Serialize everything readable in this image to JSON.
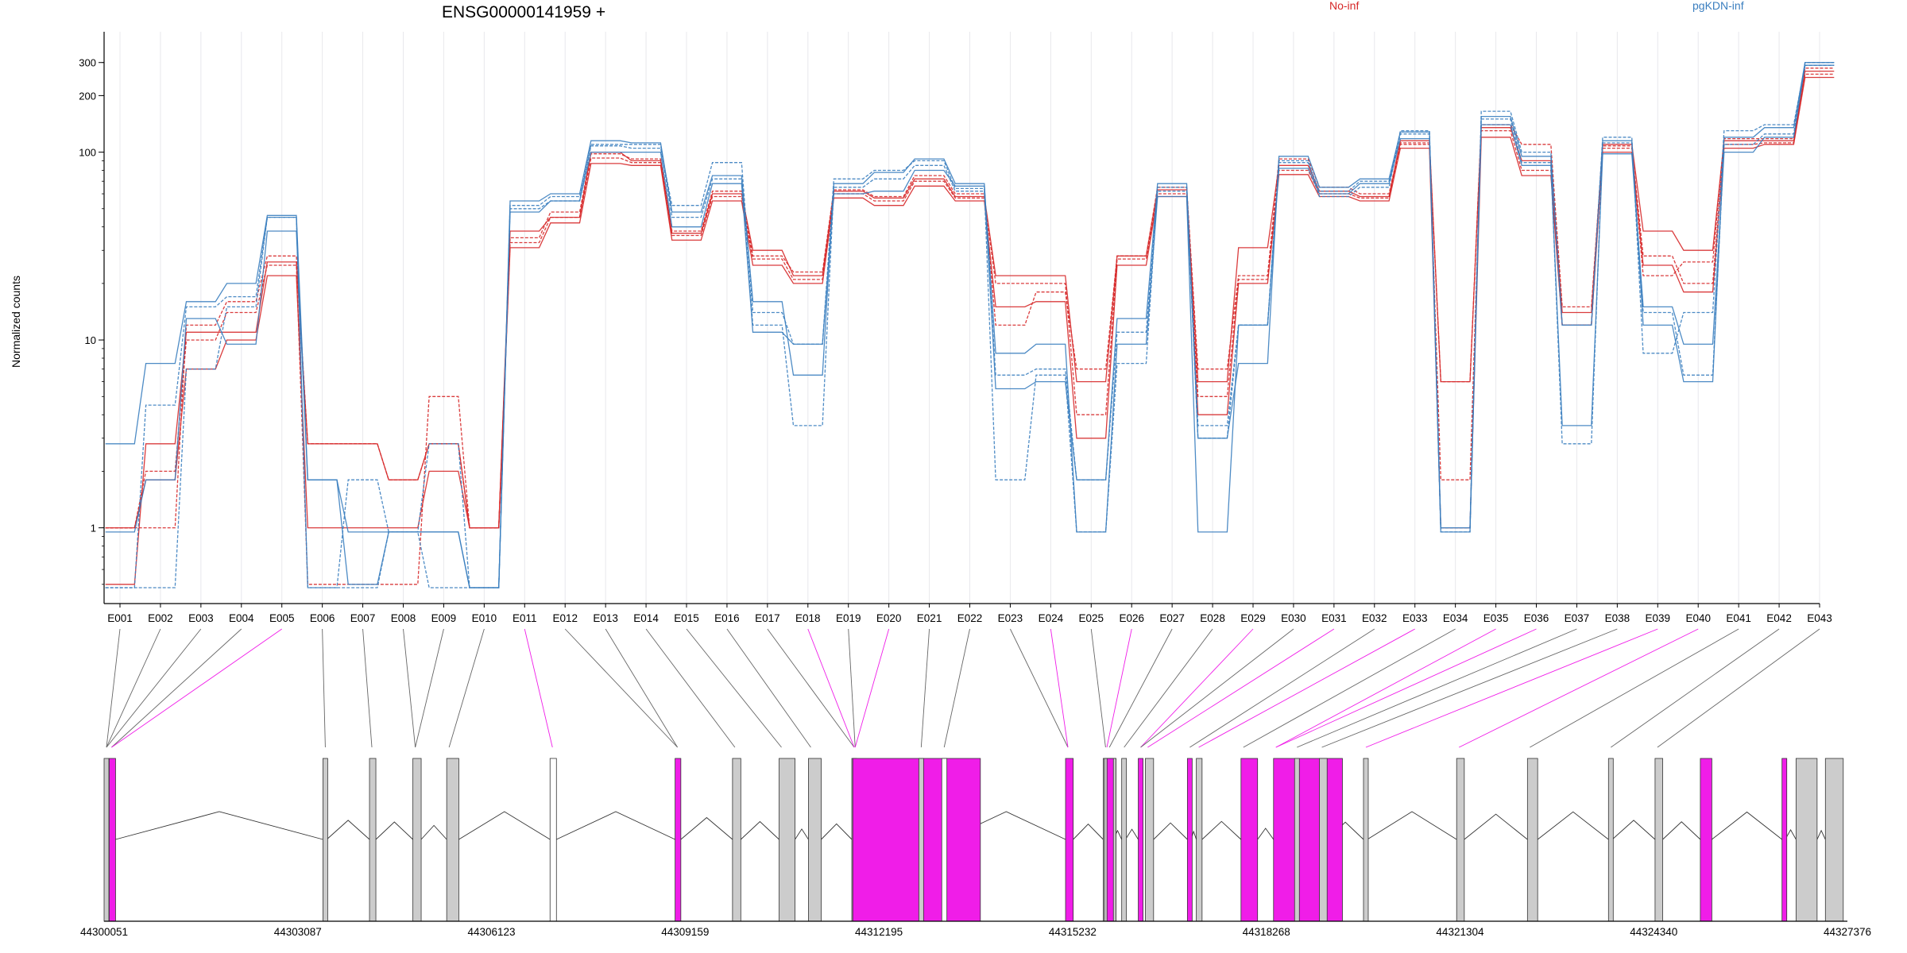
{
  "chart_data": {
    "type": "line",
    "title": "ENSG00000141959 +",
    "ylabel": "Normalized counts",
    "yscale": "log",
    "ylim": [
      0.48,
      360
    ],
    "yticks": [
      1,
      10,
      100,
      200,
      300
    ],
    "ytick_labels": [
      "1",
      "10",
      "100",
      "200",
      "300"
    ],
    "grid": "vertical",
    "legend": [
      {
        "name": "No-inf",
        "color": "#d62728",
        "position": "top-right"
      },
      {
        "name": "pgKDN-inf",
        "color": "#3a7ebf",
        "position": "top-right"
      }
    ],
    "categories": [
      "E001",
      "E002",
      "E003",
      "E004",
      "E005",
      "E006",
      "E007",
      "E008",
      "E009",
      "E010",
      "E011",
      "E012",
      "E013",
      "E014",
      "E015",
      "E016",
      "E017",
      "E018",
      "E019",
      "E020",
      "E021",
      "E022",
      "E023",
      "E024",
      "E025",
      "E026",
      "E027",
      "E028",
      "E029",
      "E030",
      "E031",
      "E032",
      "E033",
      "E034",
      "E035",
      "E036",
      "E037",
      "E038",
      "E039",
      "E040",
      "E041",
      "E042",
      "E043"
    ],
    "series": [
      {
        "group": "No-inf",
        "color": "#d62728",
        "dash": "solid",
        "values": [
          1.0,
          1.8,
          7,
          10,
          22,
          1.0,
          1.0,
          1.0,
          2.0,
          1.0,
          31,
          42,
          87,
          85,
          34,
          55,
          25,
          20,
          57,
          52,
          66,
          55,
          15,
          16,
          3.0,
          25,
          58,
          4.0,
          20,
          76,
          58,
          55,
          105,
          1.0,
          120,
          75,
          12,
          100,
          25,
          18,
          105,
          110,
          250
        ]
      },
      {
        "group": "No-inf",
        "color": "#d62728",
        "dash": "dashed",
        "values": [
          1.0,
          2.0,
          10,
          14,
          25,
          0.5,
          0.5,
          0.5,
          5.0,
          1.0,
          33,
          45,
          93,
          88,
          36,
          58,
          27,
          21,
          60,
          55,
          70,
          57,
          20,
          20,
          4.0,
          27,
          60,
          5.0,
          21,
          80,
          60,
          57,
          110,
          1.8,
          130,
          80,
          12,
          105,
          28,
          20,
          110,
          112,
          260
        ]
      },
      {
        "group": "No-inf",
        "color": "#d62728",
        "dash": "solid",
        "values": [
          0.5,
          2.8,
          11,
          11,
          26,
          2.8,
          2.8,
          1.8,
          2.8,
          1.0,
          38,
          45,
          100,
          90,
          37,
          60,
          30,
          22,
          62,
          57,
          72,
          58,
          22,
          22,
          6.0,
          28,
          63,
          6.0,
          31,
          85,
          62,
          58,
          115,
          6.0,
          135,
          90,
          14,
          110,
          38,
          30,
          115,
          115,
          270
        ]
      },
      {
        "group": "No-inf",
        "color": "#d62728",
        "dash": "dashed",
        "values": [
          1.0,
          1.0,
          12,
          16,
          28,
          2.8,
          2.8,
          1.8,
          2.8,
          1.0,
          35,
          48,
          98,
          92,
          38,
          62,
          28,
          23,
          63,
          58,
          75,
          60,
          12,
          18,
          7.0,
          28,
          65,
          7.0,
          22,
          92,
          65,
          60,
          112,
          6.0,
          140,
          110,
          15,
          108,
          22,
          26,
          118,
          118,
          280
        ]
      },
      {
        "group": "pgKDN-inf",
        "color": "#3a7ebf",
        "dash": "solid",
        "values": [
          0.95,
          1.8,
          13,
          9.5,
          38,
          1.8,
          0.5,
          0.95,
          0.95,
          0.48,
          48,
          55,
          100,
          100,
          40,
          68,
          11,
          9.5,
          60,
          62,
          80,
          66,
          8.5,
          9.5,
          0.95,
          9.5,
          58,
          0.95,
          12,
          82,
          60,
          68,
          118,
          0.95,
          140,
          85,
          3.5,
          98,
          15,
          9.5,
          100,
          120,
          290
        ]
      },
      {
        "group": "pgKDN-inf",
        "color": "#3a7ebf",
        "dash": "dashed",
        "values": [
          0.48,
          4.5,
          15,
          17,
          45,
          0.48,
          1.8,
          0.95,
          0.48,
          0.48,
          52,
          58,
          110,
          110,
          45,
          72,
          12,
          3.5,
          65,
          72,
          85,
          62,
          6.5,
          7.0,
          1.8,
          11,
          62,
          3.0,
          12,
          88,
          62,
          70,
          125,
          1.0,
          150,
          88,
          2.8,
          112,
          14,
          6.5,
          110,
          125,
          300
        ]
      },
      {
        "group": "pgKDN-inf",
        "color": "#3a7ebf",
        "dash": "solid",
        "values": [
          2.8,
          7.5,
          16,
          20,
          46,
          1.8,
          0.95,
          0.95,
          0.95,
          0.48,
          55,
          60,
          115,
          112,
          48,
          75,
          16,
          6.5,
          68,
          78,
          92,
          68,
          5.5,
          6.0,
          1.8,
          13,
          68,
          3.0,
          7.5,
          95,
          65,
          72,
          128,
          1.0,
          155,
          95,
          12,
          115,
          12,
          6.0,
          120,
          135,
          300
        ]
      },
      {
        "group": "pgKDN-inf",
        "color": "#3a7ebf",
        "dash": "dashed",
        "values": [
          0.48,
          0.48,
          7.0,
          15,
          45,
          0.48,
          0.48,
          0.95,
          2.8,
          0.48,
          50,
          55,
          108,
          105,
          52,
          88,
          14,
          9.5,
          72,
          80,
          90,
          64,
          1.8,
          6.5,
          0.95,
          7.5,
          65,
          3.5,
          12,
          90,
          58,
          65,
          130,
          0.95,
          165,
          100,
          12,
          120,
          8.5,
          14,
          130,
          140,
          290
        ]
      }
    ],
    "gene_model": {
      "coord_labels": [
        "44300051",
        "44303087",
        "44306123",
        "44309159",
        "44312195",
        "44315232",
        "44318268",
        "44321304",
        "44324340",
        "44327376"
      ],
      "coord_range": [
        44300051,
        44327376
      ],
      "highlight_color": "#f01de8",
      "exon_color": "#cccccc",
      "highlighted_exons": [
        "E005",
        "E011",
        "E018",
        "E020",
        "E024",
        "E026",
        "E029",
        "E031",
        "E033",
        "E035",
        "E036",
        "E039",
        "E040"
      ]
    }
  }
}
